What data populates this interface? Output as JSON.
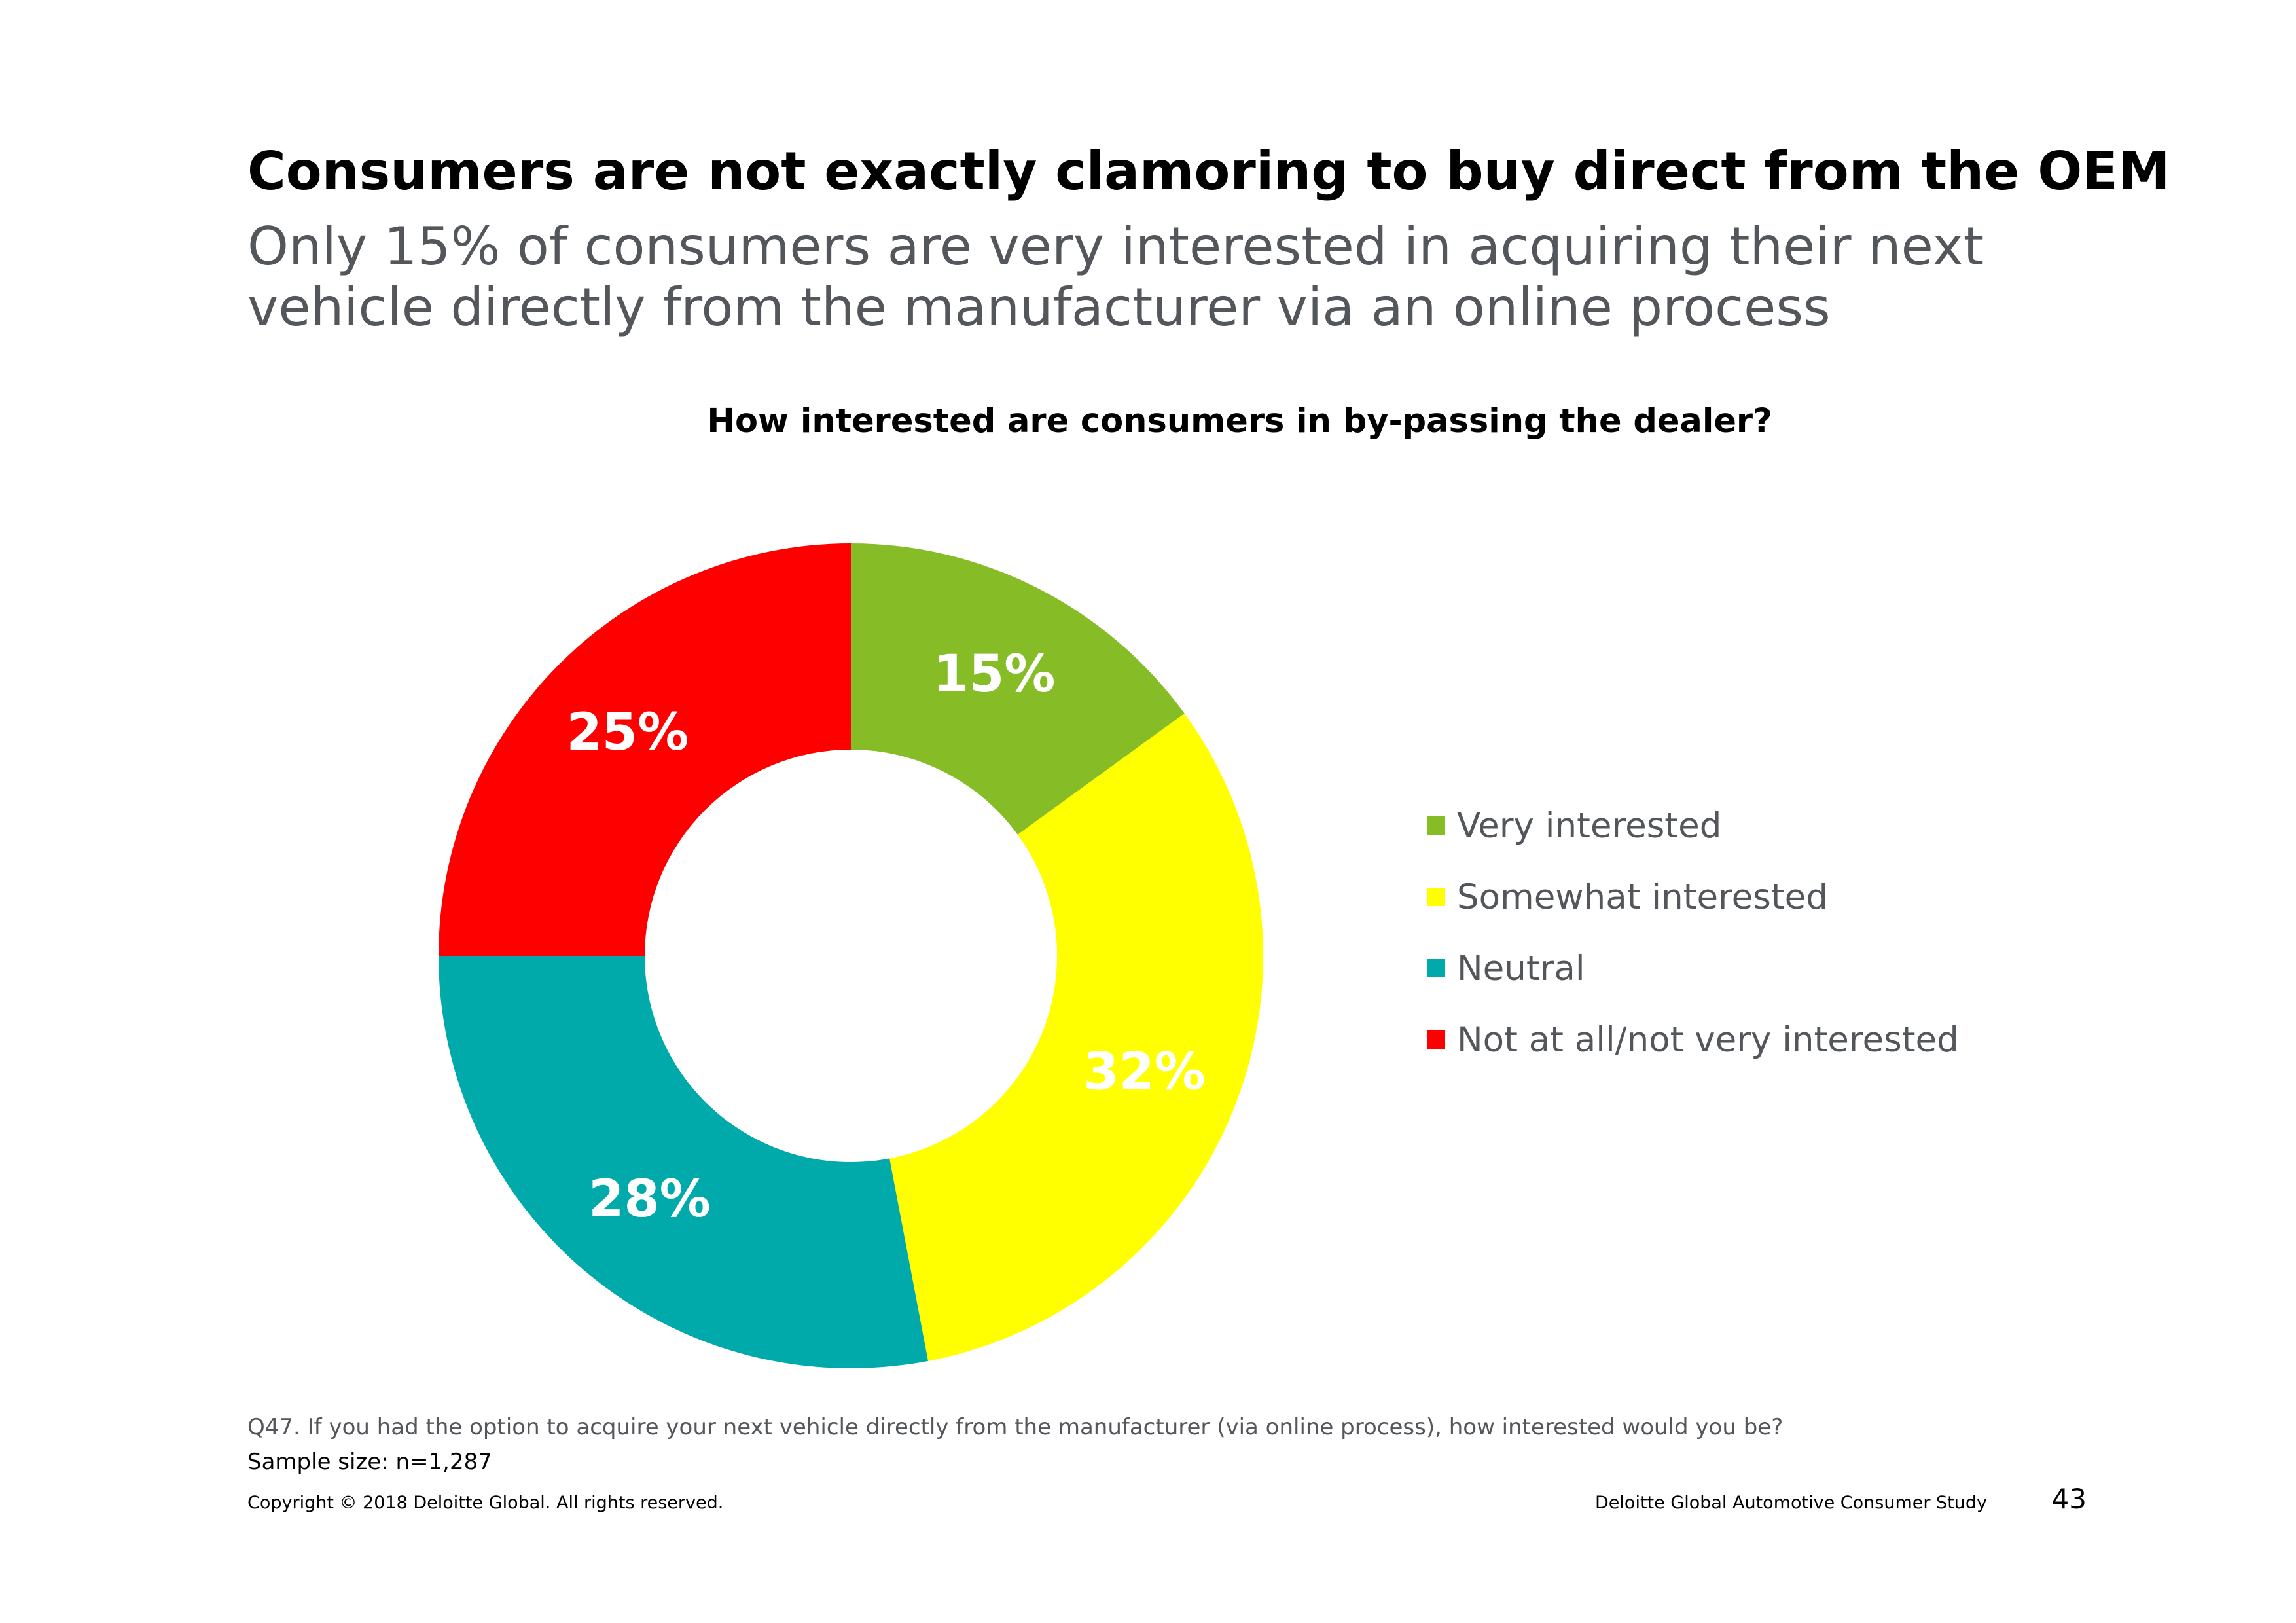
{
  "headline": "Consumers are not exactly clamoring to buy direct from the OEM",
  "subheadline": "Only 15% of consumers are very interested in acquiring their next vehicle directly from the manufacturer via an online process",
  "chart_data": {
    "type": "pie",
    "variant": "donut",
    "title": "How interested are consumers in by-passing the dealer?",
    "categories": [
      "Very interested",
      "Somewhat interested",
      "Neutral",
      "Not at all/not very interested"
    ],
    "values": [
      15,
      32,
      28,
      25
    ],
    "labels": [
      "15%",
      "32%",
      "28%",
      "25%"
    ],
    "colors": [
      "#86bc25",
      "#ffff00",
      "#00aaaa",
      "#ff0000"
    ],
    "legend_position": "right"
  },
  "footnote": {
    "question": "Q47. If you had the option to acquire your next vehicle directly from the manufacturer (via online process), how interested would you be?",
    "sample_size": "Sample size: n=1,287"
  },
  "footer": {
    "copyright": "Copyright © 2018 Deloitte Global. All rights reserved.",
    "study_name": "Deloitte Global Automotive Consumer Study",
    "page_number": "43"
  }
}
